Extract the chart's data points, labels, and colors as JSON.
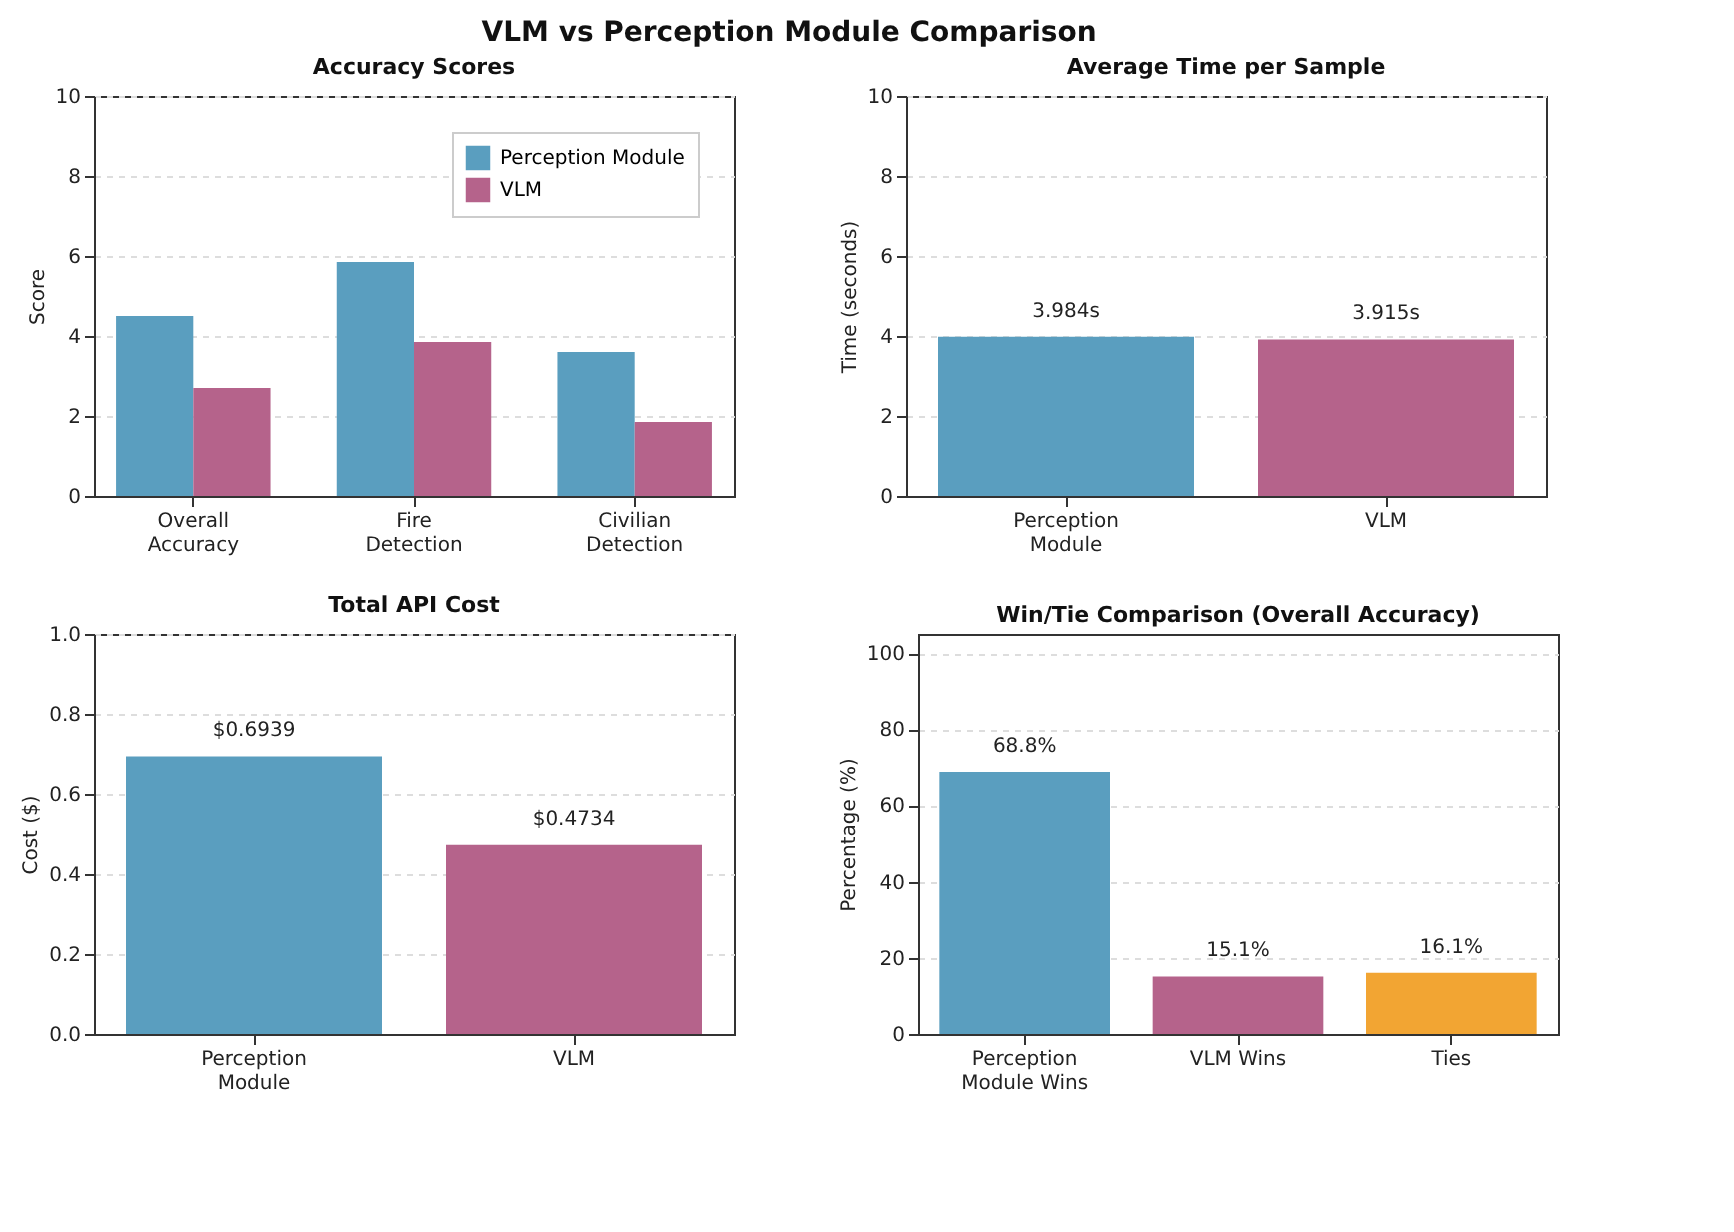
{
  "chart_data": [
    {
      "type": "other",
      "title": "VLM vs Perception Module Comparison"
    },
    {
      "type": "bar",
      "title": "Accuracy Scores",
      "ylabel": "Score",
      "categories": [
        "Overall\nAccuracy",
        "Fire\nDetection",
        "Civilian\nDetection"
      ],
      "series": [
        {
          "name": "Perception Module",
          "color": "#5a9ebf",
          "values": [
            4.5,
            5.85,
            3.6
          ]
        },
        {
          "name": "VLM",
          "color": "#b5638b",
          "values": [
            2.7,
            3.85,
            1.85
          ]
        }
      ],
      "ylim": [
        0,
        10
      ],
      "yticks": [
        0,
        2,
        4,
        6,
        8,
        10
      ],
      "grid": "y",
      "legend": "top right"
    },
    {
      "type": "bar",
      "title": "Average Time per Sample",
      "ylabel": "Time (seconds)",
      "categories": [
        "Perception\nModule",
        "VLM"
      ],
      "values": [
        3.984,
        3.915
      ],
      "colors": [
        "#5a9ebf",
        "#b5638b"
      ],
      "value_labels": [
        "3.984s",
        "3.915s"
      ],
      "ylim": [
        0,
        10
      ],
      "yticks": [
        0,
        2,
        4,
        6,
        8,
        10
      ],
      "grid": "y"
    },
    {
      "type": "bar",
      "title": "Total API Cost",
      "ylabel": "Cost ($)",
      "categories": [
        "Perception\nModule",
        "VLM"
      ],
      "values": [
        0.6939,
        0.4734
      ],
      "colors": [
        "#5a9ebf",
        "#b5638b"
      ],
      "value_labels": [
        "$0.6939",
        "$0.4734"
      ],
      "ylim": [
        0,
        1
      ],
      "yticks": [
        {
          "value": 0,
          "label": "0.0"
        },
        0.2,
        0.4,
        0.6,
        0.8,
        {
          "value": 1,
          "label": "1.0"
        }
      ],
      "grid": "y"
    },
    {
      "type": "bar",
      "title": "Win/Tie Comparison (Overall Accuracy)",
      "ylabel": "Percentage (%)",
      "categories": [
        "Perception\nModule Wins",
        "VLM Wins",
        "Ties"
      ],
      "values": [
        68.8,
        15.1,
        16.1
      ],
      "colors": [
        "#5a9ebf",
        "#b5638b",
        "#f2a533"
      ],
      "value_labels": [
        "68.8%",
        "15.1%",
        "16.1%"
      ],
      "ylim": [
        0,
        105
      ],
      "yticks": [
        0,
        20,
        40,
        60,
        80,
        100
      ],
      "grid": "y"
    }
  ]
}
